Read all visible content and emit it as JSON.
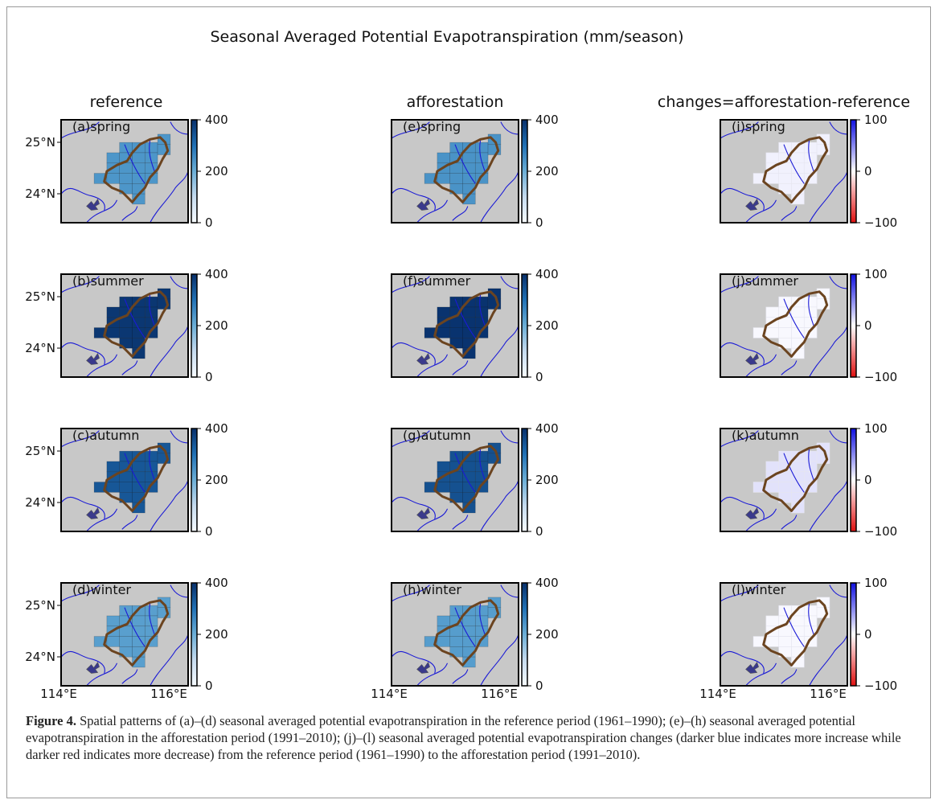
{
  "figure_title": "Seasonal Averaged Potential Evapotranspiration (mm/season)",
  "caption": {
    "label": "Figure 4.",
    "text": " Spatial patterns of (a)–(d) seasonal averaged potential evapotranspiration in the reference period (1961–1990); (e)–(h) seasonal averaged potential evapotranspiration in the afforestation period (1991–2010); (j)–(l) seasonal averaged potential evapotranspiration changes (darker blue indicates more increase while darker red indicates more decrease) from the reference period (1961–1990) to the afforestation period (1991–2010)."
  },
  "colors": {
    "land": "#c8c8c8",
    "rivers": "#1a1ad6",
    "basin_outline": "#6b4420",
    "lake": "#3a3a8c"
  },
  "chart_data": {
    "type": "heatmap",
    "columns": [
      {
        "title": "reference",
        "colorbar": {
          "cmap": "blues",
          "range": [
            0,
            400
          ],
          "ticks": [
            0,
            200,
            400
          ],
          "tick_labels": [
            "0",
            "200",
            "400"
          ]
        }
      },
      {
        "title": "afforestation",
        "colorbar": {
          "cmap": "blues",
          "range": [
            0,
            400
          ],
          "ticks": [
            0,
            200,
            400
          ],
          "tick_labels": [
            "0",
            "200",
            "400"
          ]
        }
      },
      {
        "title": "changes=afforestation-reference",
        "colorbar": {
          "cmap": "red-white-blue",
          "range": [
            -100,
            100
          ],
          "ticks": [
            -100,
            0,
            100
          ],
          "tick_labels": [
            "−100",
            "0",
            "100"
          ]
        }
      }
    ],
    "y_ticks": [
      "25°N",
      "24°N"
    ],
    "x_ticks": [
      "114°E",
      "116°E"
    ],
    "panels": [
      {
        "label": "(a)spring",
        "col": 0,
        "row": 0,
        "value": 240
      },
      {
        "label": "(b)summer",
        "col": 0,
        "row": 1,
        "value": 390
      },
      {
        "label": "(c)autumn",
        "col": 0,
        "row": 2,
        "value": 340
      },
      {
        "label": "(d)winter",
        "col": 0,
        "row": 3,
        "value": 225
      },
      {
        "label": "(e)spring",
        "col": 1,
        "row": 0,
        "value": 245
      },
      {
        "label": "(f)summer",
        "col": 1,
        "row": 1,
        "value": 395
      },
      {
        "label": "(g)autumn",
        "col": 1,
        "row": 2,
        "value": 350
      },
      {
        "label": "(h)winter",
        "col": 1,
        "row": 3,
        "value": 228
      },
      {
        "label": "(i)spring",
        "col": 2,
        "row": 0,
        "value": 6
      },
      {
        "label": "(j)summer",
        "col": 2,
        "row": 1,
        "value": 3
      },
      {
        "label": "(k)autumn",
        "col": 2,
        "row": 2,
        "value": 12
      },
      {
        "label": "(l)winter",
        "col": 2,
        "row": 3,
        "value": 3
      }
    ]
  }
}
